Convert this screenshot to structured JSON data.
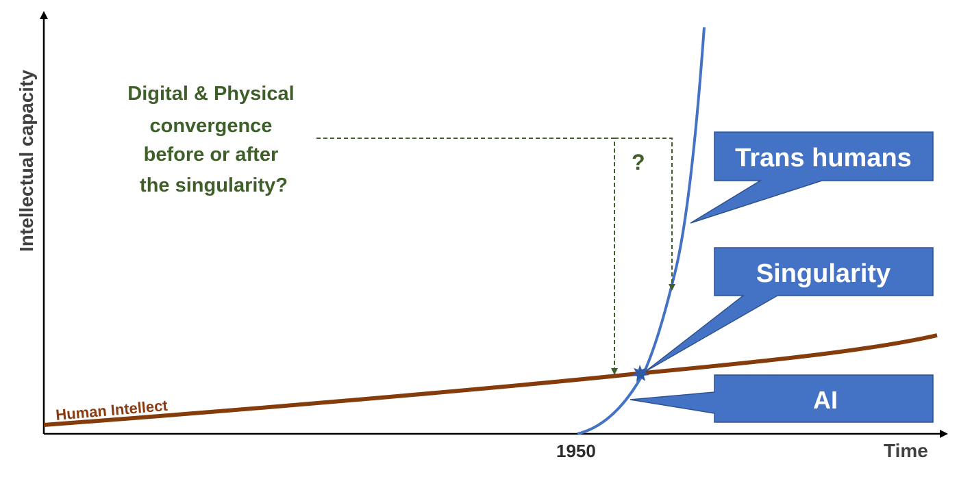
{
  "axes": {
    "y_label": "Intellectual capacity",
    "x_label": "Time",
    "x_tick": "1950"
  },
  "curves": {
    "human_label": "Human Intellect"
  },
  "question": {
    "lines": [
      "Digital & Physical",
      "convergence",
      "before or after",
      "the singularity?"
    ],
    "mark": "?"
  },
  "callouts": {
    "trans_humans": "Trans humans",
    "singularity": "Singularity",
    "ai": "AI"
  },
  "colors": {
    "ai_curve": "#4472c4",
    "human_curve": "#843c0c",
    "question_text": "#3f5f2a",
    "callout_fill": "#4472c4",
    "axis": "#000000"
  }
}
